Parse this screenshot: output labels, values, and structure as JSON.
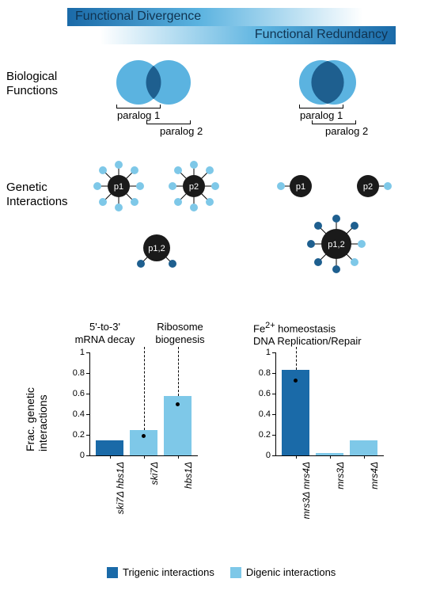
{
  "colors": {
    "dark_blue": "#1a6aa8",
    "light_blue": "#7ec8e8",
    "venn_light": "#5bb3e0",
    "venn_dark": "#1e5f8f",
    "node_black": "#1a1a1a",
    "node_light": "#7ec8e8",
    "node_dark": "#1e5f8f"
  },
  "gradient": {
    "top_label": "Functional Divergence",
    "bottom_label": "Functional Redundancy"
  },
  "rows": {
    "biological": "Biological\nFunctions",
    "genetic": "Genetic\nInteractions"
  },
  "paralog": {
    "p1": "paralog 1",
    "p2": "paralog 2"
  },
  "network_labels": {
    "p1": "p1",
    "p2": "p2",
    "p12": "p1,2"
  },
  "chart": {
    "y_label": "Frac. genetic\ninteractions",
    "ylim": [
      0,
      1
    ],
    "ticks": [
      0,
      0.2,
      0.4,
      0.6,
      0.8,
      1
    ],
    "left": {
      "titles": [
        "5'-to-3'\nmRNA decay",
        "Ribosome\nbiogenesis"
      ],
      "bars": [
        {
          "label": "ski7Δ hbs1Δ",
          "value": 0.15,
          "color": "#1a6aa8"
        },
        {
          "label": "ski7Δ",
          "value": 0.25,
          "color": "#7ec8e8",
          "dot": 0.19,
          "dash_title": 0
        },
        {
          "label": "hbs1Δ",
          "value": 0.58,
          "color": "#7ec8e8",
          "dot": 0.5,
          "dash_title": 1
        }
      ]
    },
    "right": {
      "titles": [
        "Fe²⁺ homeostasis\nDNA Replication/Repair"
      ],
      "bars": [
        {
          "label": "mrs3Δ mrs4Δ",
          "value": 0.83,
          "color": "#1a6aa8",
          "dot": 0.73,
          "dash_title": 0
        },
        {
          "label": "mrs3Δ",
          "value": 0.02,
          "color": "#7ec8e8"
        },
        {
          "label": "mrs4Δ",
          "value": 0.15,
          "color": "#7ec8e8"
        }
      ]
    }
  },
  "legend": {
    "trigenic": "Trigenic interactions",
    "digenic": "Digenic interactions"
  }
}
